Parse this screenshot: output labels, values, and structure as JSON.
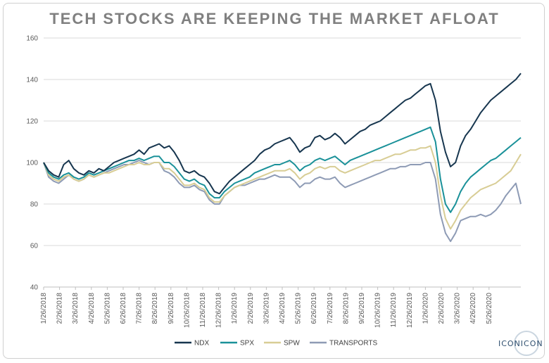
{
  "chart_data": {
    "type": "line",
    "title": "TECH STOCKS ARE KEEPING THE MARKET AFLOAT",
    "xlabel": "",
    "ylabel": "",
    "ylim": [
      40,
      160
    ],
    "yticks": [
      40,
      60,
      80,
      100,
      120,
      140,
      160
    ],
    "x_tick_labels": [
      "1/26/2018",
      "2/26/2018",
      "3/26/2018",
      "4/26/2018",
      "5/26/2018",
      "6/26/2018",
      "7/26/2018",
      "8/26/2018",
      "9/26/2018",
      "10/26/2018",
      "11/26/2018",
      "12/26/2018",
      "1/26/2019",
      "2/26/2019",
      "3/26/2019",
      "4/26/2019",
      "5/26/2019",
      "6/26/2019",
      "7/26/2019",
      "8/26/2019",
      "9/26/2019",
      "10/26/2019",
      "11/26/2019",
      "12/26/2019",
      "1/26/2020",
      "2/26/2020",
      "3/26/2020",
      "4/26/2020",
      "5/26/2020"
    ],
    "grid": true,
    "legend_position": "bottom",
    "series": [
      {
        "name": "NDX",
        "color": "#17364f",
        "values": [
          100,
          96,
          94,
          93,
          99,
          101,
          97,
          95,
          94,
          96,
          95,
          97,
          96,
          98,
          100,
          101,
          102,
          103,
          104,
          106,
          104,
          107,
          108,
          109,
          107,
          108,
          105,
          101,
          96,
          95,
          96,
          94,
          93,
          90,
          86,
          85,
          88,
          91,
          93,
          95,
          97,
          99,
          101,
          104,
          106,
          107,
          109,
          110,
          111,
          112,
          109,
          105,
          107,
          108,
          112,
          113,
          111,
          112,
          114,
          112,
          109,
          111,
          113,
          115,
          116,
          118,
          119,
          120,
          122,
          124,
          126,
          128,
          130,
          131,
          133,
          135,
          137,
          138,
          130,
          115,
          105,
          98,
          100,
          108,
          113,
          116,
          120,
          124,
          127,
          130,
          132,
          134,
          136,
          138,
          140,
          143
        ]
      },
      {
        "name": "SPX",
        "color": "#1a9199",
        "values": [
          100,
          95,
          93,
          92,
          94,
          95,
          93,
          92,
          93,
          95,
          94,
          95,
          96,
          97,
          98,
          99,
          100,
          101,
          101,
          102,
          101,
          102,
          103,
          103,
          100,
          100,
          98,
          95,
          92,
          91,
          92,
          90,
          89,
          85,
          83,
          83,
          86,
          88,
          90,
          91,
          92,
          93,
          95,
          96,
          97,
          98,
          99,
          99,
          100,
          101,
          99,
          96,
          98,
          99,
          101,
          102,
          101,
          102,
          103,
          101,
          99,
          101,
          102,
          103,
          104,
          105,
          106,
          107,
          108,
          109,
          110,
          111,
          112,
          113,
          114,
          115,
          116,
          117,
          110,
          92,
          80,
          76,
          80,
          86,
          90,
          93,
          95,
          97,
          99,
          101,
          102,
          104,
          106,
          108,
          110,
          112
        ]
      },
      {
        "name": "SPW",
        "color": "#d8cd95",
        "values": [
          100,
          94,
          92,
          91,
          93,
          94,
          92,
          91,
          92,
          94,
          93,
          94,
          95,
          95,
          96,
          97,
          98,
          99,
          99,
          100,
          99,
          99,
          100,
          100,
          97,
          97,
          95,
          92,
          89,
          89,
          90,
          88,
          87,
          83,
          81,
          81,
          84,
          86,
          88,
          89,
          90,
          91,
          92,
          93,
          94,
          95,
          96,
          96,
          96,
          97,
          95,
          92,
          94,
          95,
          97,
          98,
          97,
          98,
          98,
          96,
          95,
          96,
          97,
          98,
          99,
          100,
          101,
          101,
          102,
          103,
          104,
          104,
          105,
          106,
          106,
          107,
          107,
          108,
          100,
          84,
          73,
          68,
          72,
          77,
          80,
          83,
          85,
          87,
          88,
          89,
          90,
          92,
          94,
          96,
          100,
          104
        ]
      },
      {
        "name": "TRANSPORTS",
        "color": "#8e9bb5",
        "values": [
          100,
          93,
          91,
          90,
          92,
          94,
          92,
          91,
          92,
          94,
          93,
          94,
          95,
          96,
          97,
          98,
          99,
          99,
          100,
          101,
          100,
          99,
          100,
          100,
          96,
          95,
          93,
          90,
          88,
          88,
          89,
          87,
          86,
          82,
          80,
          80,
          84,
          86,
          88,
          89,
          89,
          90,
          91,
          92,
          92,
          93,
          94,
          93,
          93,
          93,
          91,
          88,
          90,
          90,
          92,
          93,
          92,
          92,
          93,
          90,
          88,
          89,
          90,
          91,
          92,
          93,
          94,
          95,
          96,
          97,
          97,
          98,
          98,
          99,
          99,
          99,
          100,
          100,
          92,
          75,
          66,
          62,
          66,
          72,
          73,
          74,
          74,
          75,
          74,
          75,
          77,
          80,
          84,
          87,
          90,
          80
        ]
      }
    ]
  },
  "branding": {
    "logo_text": "ICONICON"
  }
}
